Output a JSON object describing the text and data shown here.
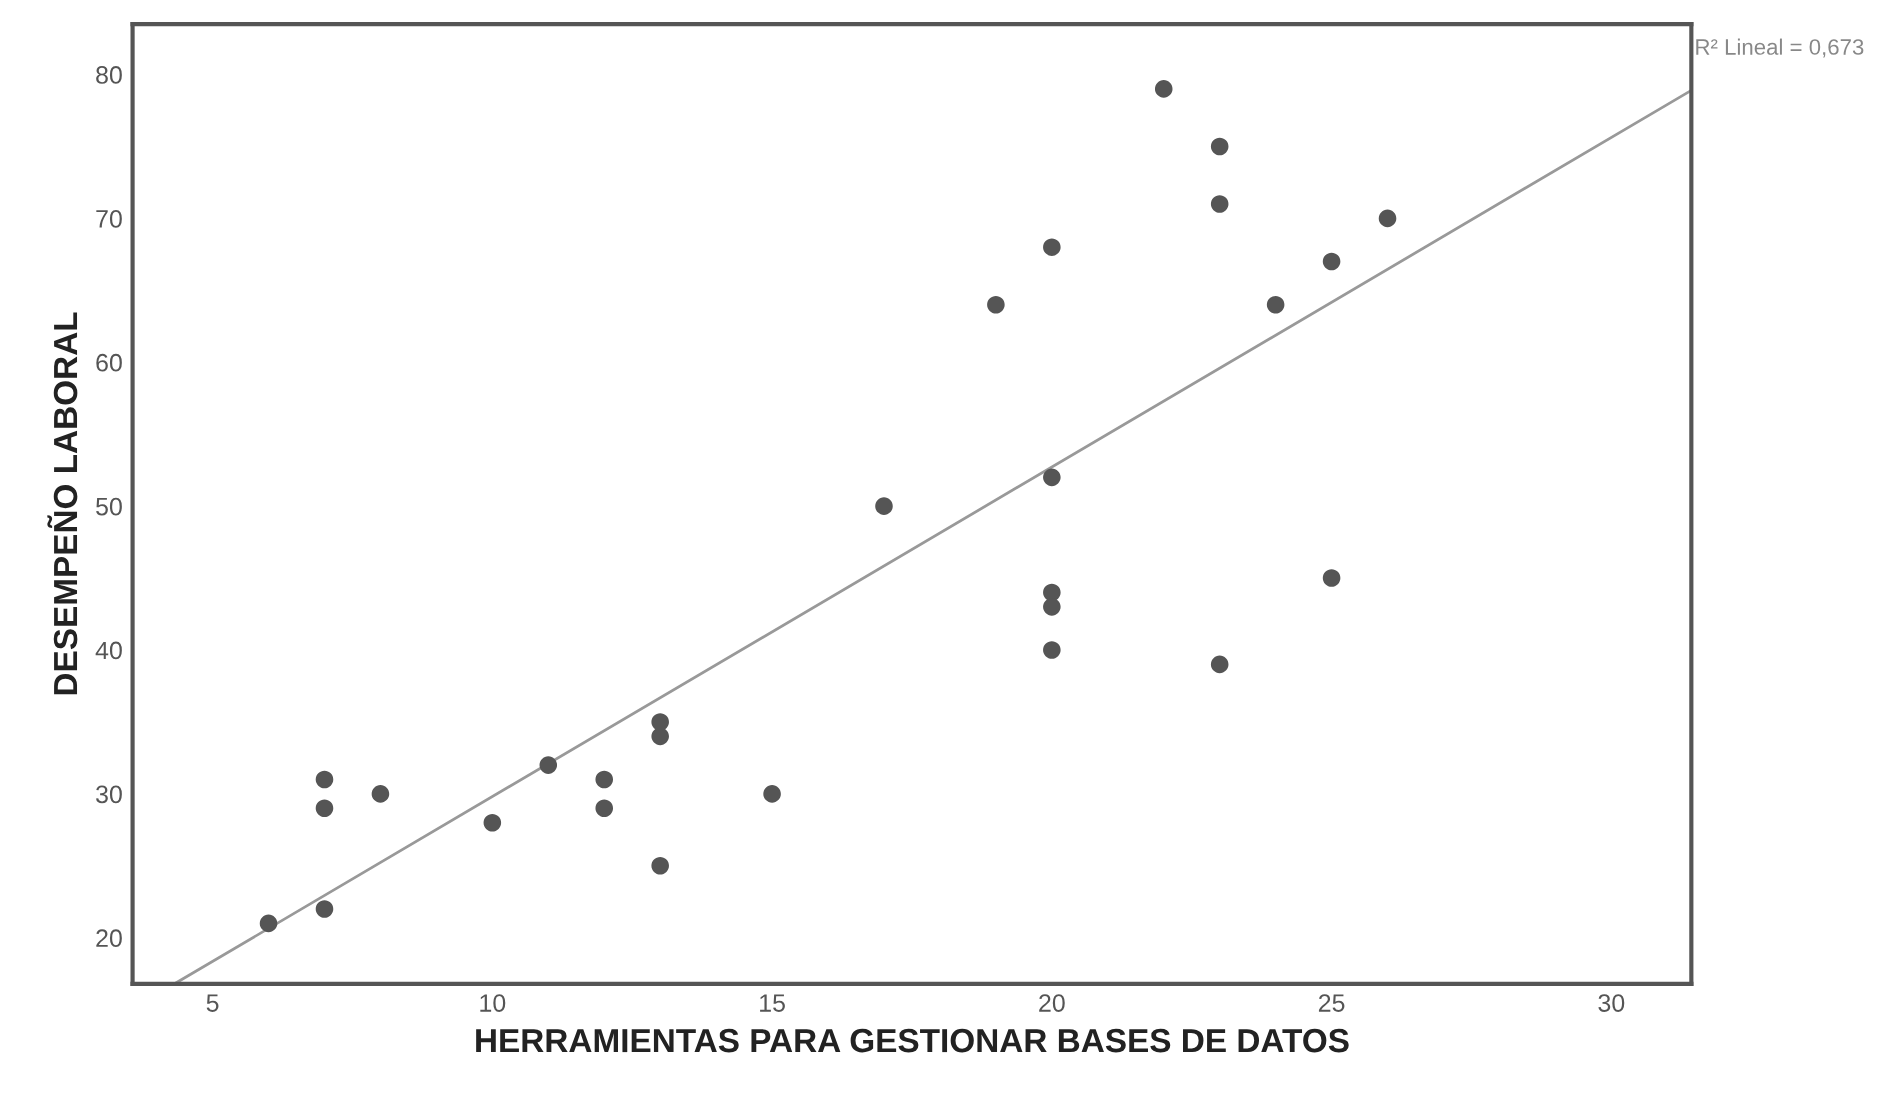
{
  "chart_data": {
    "type": "scatter",
    "xlabel": "HERRAMIENTAS PARA GESTIONAR BASES DE DATOS",
    "ylabel": "DESEMPEÑO LABORAL",
    "xlim": [
      3.57,
      31.43
    ],
    "ylim": [
      16.8,
      83.5
    ],
    "xticks": [
      5,
      10,
      15,
      20,
      25,
      30
    ],
    "yticks": [
      20,
      30,
      40,
      50,
      60,
      70,
      80
    ],
    "grid": false,
    "series": [
      {
        "marker": "circle",
        "color": "#555555",
        "x": [
          6,
          7,
          7,
          7,
          8,
          10,
          11,
          12,
          12,
          13,
          13,
          13,
          15,
          17,
          19,
          20,
          20,
          20,
          20,
          20,
          22,
          23,
          23,
          23,
          24,
          25,
          25,
          26
        ],
        "values": [
          21,
          22,
          29,
          31,
          30,
          28,
          32,
          29,
          31,
          25,
          34,
          35,
          30,
          50,
          64,
          68,
          52,
          44,
          43,
          40,
          79,
          75,
          71,
          39,
          64,
          67,
          45,
          70
        ]
      },
      {
        "type": "line",
        "color": "#999999",
        "line_style": "solid",
        "marker": "none",
        "x": [
          4.32,
          31.43
        ],
        "values": [
          16.8,
          78.9
        ]
      }
    ],
    "annotations": [
      "R² Lineal = 0,673"
    ]
  }
}
